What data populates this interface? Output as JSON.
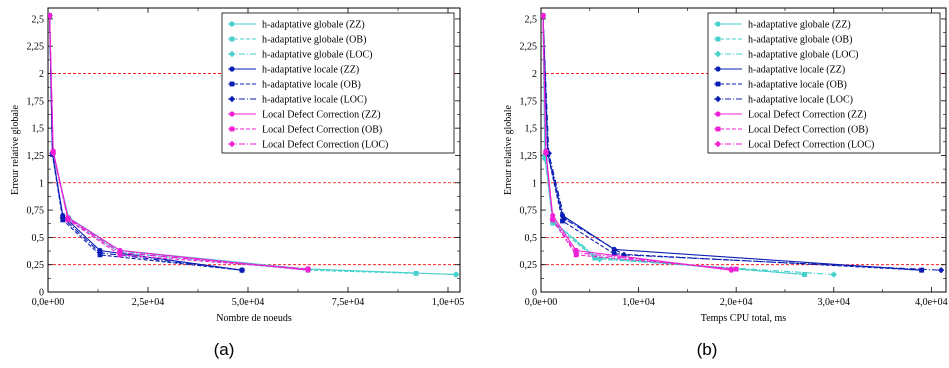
{
  "figure": {
    "captions": [
      "(a)",
      "(b)"
    ]
  },
  "colors": {
    "global": "#48d1cc",
    "local": "#0a1eb4",
    "ldc": "#f020d6",
    "guide": "#ff0000"
  },
  "legend_entries": [
    {
      "label": "h-adaptative globale (ZZ)",
      "color": "#48d1cc",
      "style": "solid",
      "marker": "circle"
    },
    {
      "label": "h-adaptative globale (OB)",
      "color": "#48d1cc",
      "style": "dashed",
      "marker": "square"
    },
    {
      "label": "h-adaptative globale (LOC)",
      "color": "#48d1cc",
      "style": "dashdot",
      "marker": "diamond"
    },
    {
      "label": "h-adaptative locale (ZZ)",
      "color": "#0a1eb4",
      "style": "solid",
      "marker": "circle"
    },
    {
      "label": "h-adaptative locale (OB)",
      "color": "#0a1eb4",
      "style": "dashed",
      "marker": "square"
    },
    {
      "label": "h-adaptative locale (LOC)",
      "color": "#0a1eb4",
      "style": "dashdot",
      "marker": "diamond"
    },
    {
      "label": "Local Defect Correction (ZZ)",
      "color": "#f020d6",
      "style": "solid",
      "marker": "circle"
    },
    {
      "label": "Local Defect Correction (OB)",
      "color": "#f020d6",
      "style": "dashed",
      "marker": "square"
    },
    {
      "label": "Local Defect Correction (LOC)",
      "color": "#f020d6",
      "style": "dashdot",
      "marker": "diamond"
    }
  ],
  "chart_data": [
    {
      "type": "line",
      "caption": "(a)",
      "xlabel": "Nombre de noeuds",
      "ylabel": "Erreur relative globale",
      "xlim": [
        0,
        103000
      ],
      "ylim": [
        0,
        2.6
      ],
      "xticks": [
        0,
        25000,
        50000,
        75000,
        100000
      ],
      "xtick_labels": [
        "0,0e+00",
        "2,5e+04",
        "5,0e+04",
        "7,5e+04",
        "1,0e+05"
      ],
      "yticks": [
        0,
        0.25,
        0.5,
        0.75,
        1,
        1.25,
        1.5,
        1.75,
        2,
        2.25,
        2.5
      ],
      "ytick_labels": [
        "0",
        "0,25",
        "0,5",
        "0,75",
        "1",
        "1,25",
        "1,5",
        "1,75",
        "2",
        "2,25",
        "2,5"
      ],
      "reference_lines": [
        0.25,
        0.5,
        1,
        2
      ],
      "legend_position": "top-right",
      "series": [
        {
          "name": "h-adaptative globale (ZZ)",
          "x": [
            400,
            1200,
            5200,
            18000,
            65000,
            102000
          ],
          "y": [
            2.53,
            1.27,
            0.68,
            0.38,
            0.21,
            0.16
          ]
        },
        {
          "name": "h-adaptative globale (OB)",
          "x": [
            400,
            1200,
            5200,
            18000,
            65000,
            92000
          ],
          "y": [
            2.53,
            1.27,
            0.66,
            0.36,
            0.2,
            0.17
          ]
        },
        {
          "name": "h-adaptative globale (LOC)",
          "x": [
            400,
            1200,
            5200,
            18000,
            65000,
            102000
          ],
          "y": [
            2.53,
            1.26,
            0.67,
            0.37,
            0.21,
            0.16
          ]
        },
        {
          "name": "h-adaptative locale (ZZ)",
          "x": [
            400,
            1100,
            3700,
            13000,
            48500
          ],
          "y": [
            2.53,
            1.27,
            0.7,
            0.38,
            0.2
          ]
        },
        {
          "name": "h-adaptative locale (OB)",
          "x": [
            400,
            1100,
            3700,
            13000,
            48500
          ],
          "y": [
            2.53,
            1.26,
            0.66,
            0.34,
            0.2
          ]
        },
        {
          "name": "h-adaptative locale (LOC)",
          "x": [
            400,
            1100,
            3700,
            13000,
            48500
          ],
          "y": [
            2.53,
            1.27,
            0.68,
            0.36,
            0.2
          ]
        },
        {
          "name": "Local Defect Correction (ZZ)",
          "x": [
            400,
            1300,
            5000,
            18000,
            65000
          ],
          "y": [
            2.53,
            1.29,
            0.68,
            0.38,
            0.2
          ]
        },
        {
          "name": "Local Defect Correction (OB)",
          "x": [
            400,
            1300,
            5000,
            18000,
            65000
          ],
          "y": [
            2.53,
            1.28,
            0.66,
            0.34,
            0.21
          ]
        },
        {
          "name": "Local Defect Correction (LOC)",
          "x": [
            400,
            1300,
            5000,
            18000,
            65000
          ],
          "y": [
            2.53,
            1.27,
            0.67,
            0.36,
            0.21
          ]
        }
      ]
    },
    {
      "type": "line",
      "caption": "(b)",
      "xlabel": "Temps CPU total, ms",
      "ylabel": "Erreur relative globale",
      "xlim": [
        0,
        41500
      ],
      "ylim": [
        0,
        2.6
      ],
      "xticks": [
        0,
        10000,
        20000,
        30000,
        40000
      ],
      "xtick_labels": [
        "0,0e+00",
        "1,0e+04",
        "2,0e+04",
        "3,0e+04",
        "4,0e+04"
      ],
      "yticks": [
        0,
        0.25,
        0.5,
        0.75,
        1,
        1.25,
        1.5,
        1.75,
        2,
        2.25,
        2.5
      ],
      "ytick_labels": [
        "0",
        "0,25",
        "0,5",
        "0,75",
        "1",
        "1,25",
        "1,5",
        "1,75",
        "2",
        "2,25",
        "2,5"
      ],
      "reference_lines": [
        0.25,
        0.5,
        1,
        2
      ],
      "legend_position": "top-right",
      "series": [
        {
          "name": "h-adaptative globale (ZZ)",
          "x": [
            200,
            400,
            1200,
            5500,
            27000
          ],
          "y": [
            2.53,
            1.25,
            0.65,
            0.32,
            0.16
          ]
        },
        {
          "name": "h-adaptative globale (OB)",
          "x": [
            200,
            400,
            1200,
            5500,
            27000
          ],
          "y": [
            2.53,
            1.24,
            0.63,
            0.31,
            0.16
          ]
        },
        {
          "name": "h-adaptative globale (LOC)",
          "x": [
            200,
            400,
            1300,
            6000,
            30000
          ],
          "y": [
            2.53,
            1.22,
            0.64,
            0.3,
            0.16
          ]
        },
        {
          "name": "h-adaptative locale (ZZ)",
          "x": [
            200,
            700,
            2200,
            7500,
            39000
          ],
          "y": [
            2.53,
            1.27,
            0.7,
            0.39,
            0.2
          ]
        },
        {
          "name": "h-adaptative locale (OB)",
          "x": [
            200,
            700,
            2200,
            7500,
            39000
          ],
          "y": [
            2.53,
            1.26,
            0.65,
            0.35,
            0.2
          ]
        },
        {
          "name": "h-adaptative locale (LOC)",
          "x": [
            200,
            800,
            2400,
            8500,
            41000
          ],
          "y": [
            2.53,
            1.27,
            0.67,
            0.34,
            0.2
          ]
        },
        {
          "name": "Local Defect Correction (ZZ)",
          "x": [
            200,
            500,
            1200,
            3600,
            19500
          ],
          "y": [
            2.53,
            1.29,
            0.7,
            0.38,
            0.2
          ]
        },
        {
          "name": "Local Defect Correction (OB)",
          "x": [
            200,
            500,
            1200,
            3600,
            20000
          ],
          "y": [
            2.53,
            1.28,
            0.66,
            0.34,
            0.21
          ]
        },
        {
          "name": "Local Defect Correction (LOC)",
          "x": [
            200,
            500,
            1200,
            3600,
            19500
          ],
          "y": [
            2.53,
            1.27,
            0.67,
            0.36,
            0.21
          ]
        }
      ]
    }
  ]
}
